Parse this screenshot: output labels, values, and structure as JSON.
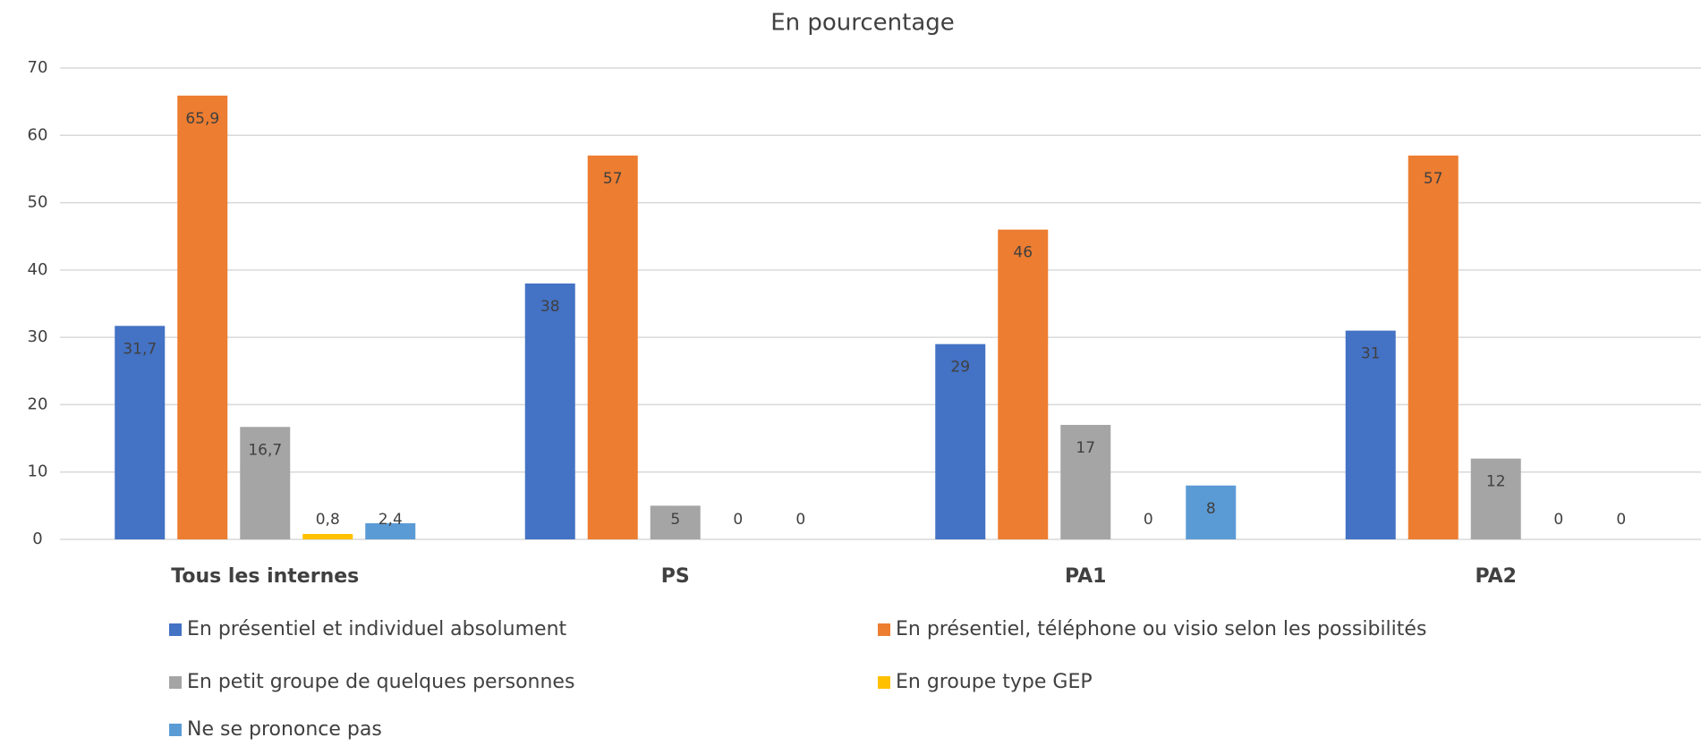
{
  "chart_data": {
    "type": "bar",
    "title": "En pourcentage",
    "categories": [
      "Tous les internes",
      "PS",
      "PA1",
      "PA2"
    ],
    "series": [
      {
        "name": "En présentiel et individuel absolument",
        "color": "#4472c4",
        "values": [
          31.7,
          38,
          29,
          31
        ],
        "value_labels": [
          "31,7",
          "38",
          "29",
          "31"
        ]
      },
      {
        "name": "En présentiel, téléphone ou visio selon les possibilités",
        "color": "#ed7d31",
        "values": [
          65.9,
          57,
          46,
          57
        ],
        "value_labels": [
          "65,9",
          "57",
          "46",
          "57"
        ]
      },
      {
        "name": "En petit groupe de quelques personnes",
        "color": "#a5a5a5",
        "values": [
          16.7,
          5,
          17,
          12
        ],
        "value_labels": [
          "16,7",
          "5",
          "17",
          "12"
        ]
      },
      {
        "name": "En groupe type GEP",
        "color": "#ffc000",
        "values": [
          0.8,
          0,
          0,
          0
        ],
        "value_labels": [
          "0,8",
          "0",
          "0",
          "0"
        ]
      },
      {
        "name": "Ne se prononce pas",
        "color": "#5b9bd5",
        "values": [
          2.4,
          0,
          8,
          0
        ],
        "value_labels": [
          "2,4",
          "0",
          "8",
          "0"
        ]
      }
    ],
    "ylim": [
      0,
      70
    ],
    "yticks": [
      0,
      10,
      20,
      30,
      40,
      50,
      60,
      70
    ],
    "grid": true
  }
}
